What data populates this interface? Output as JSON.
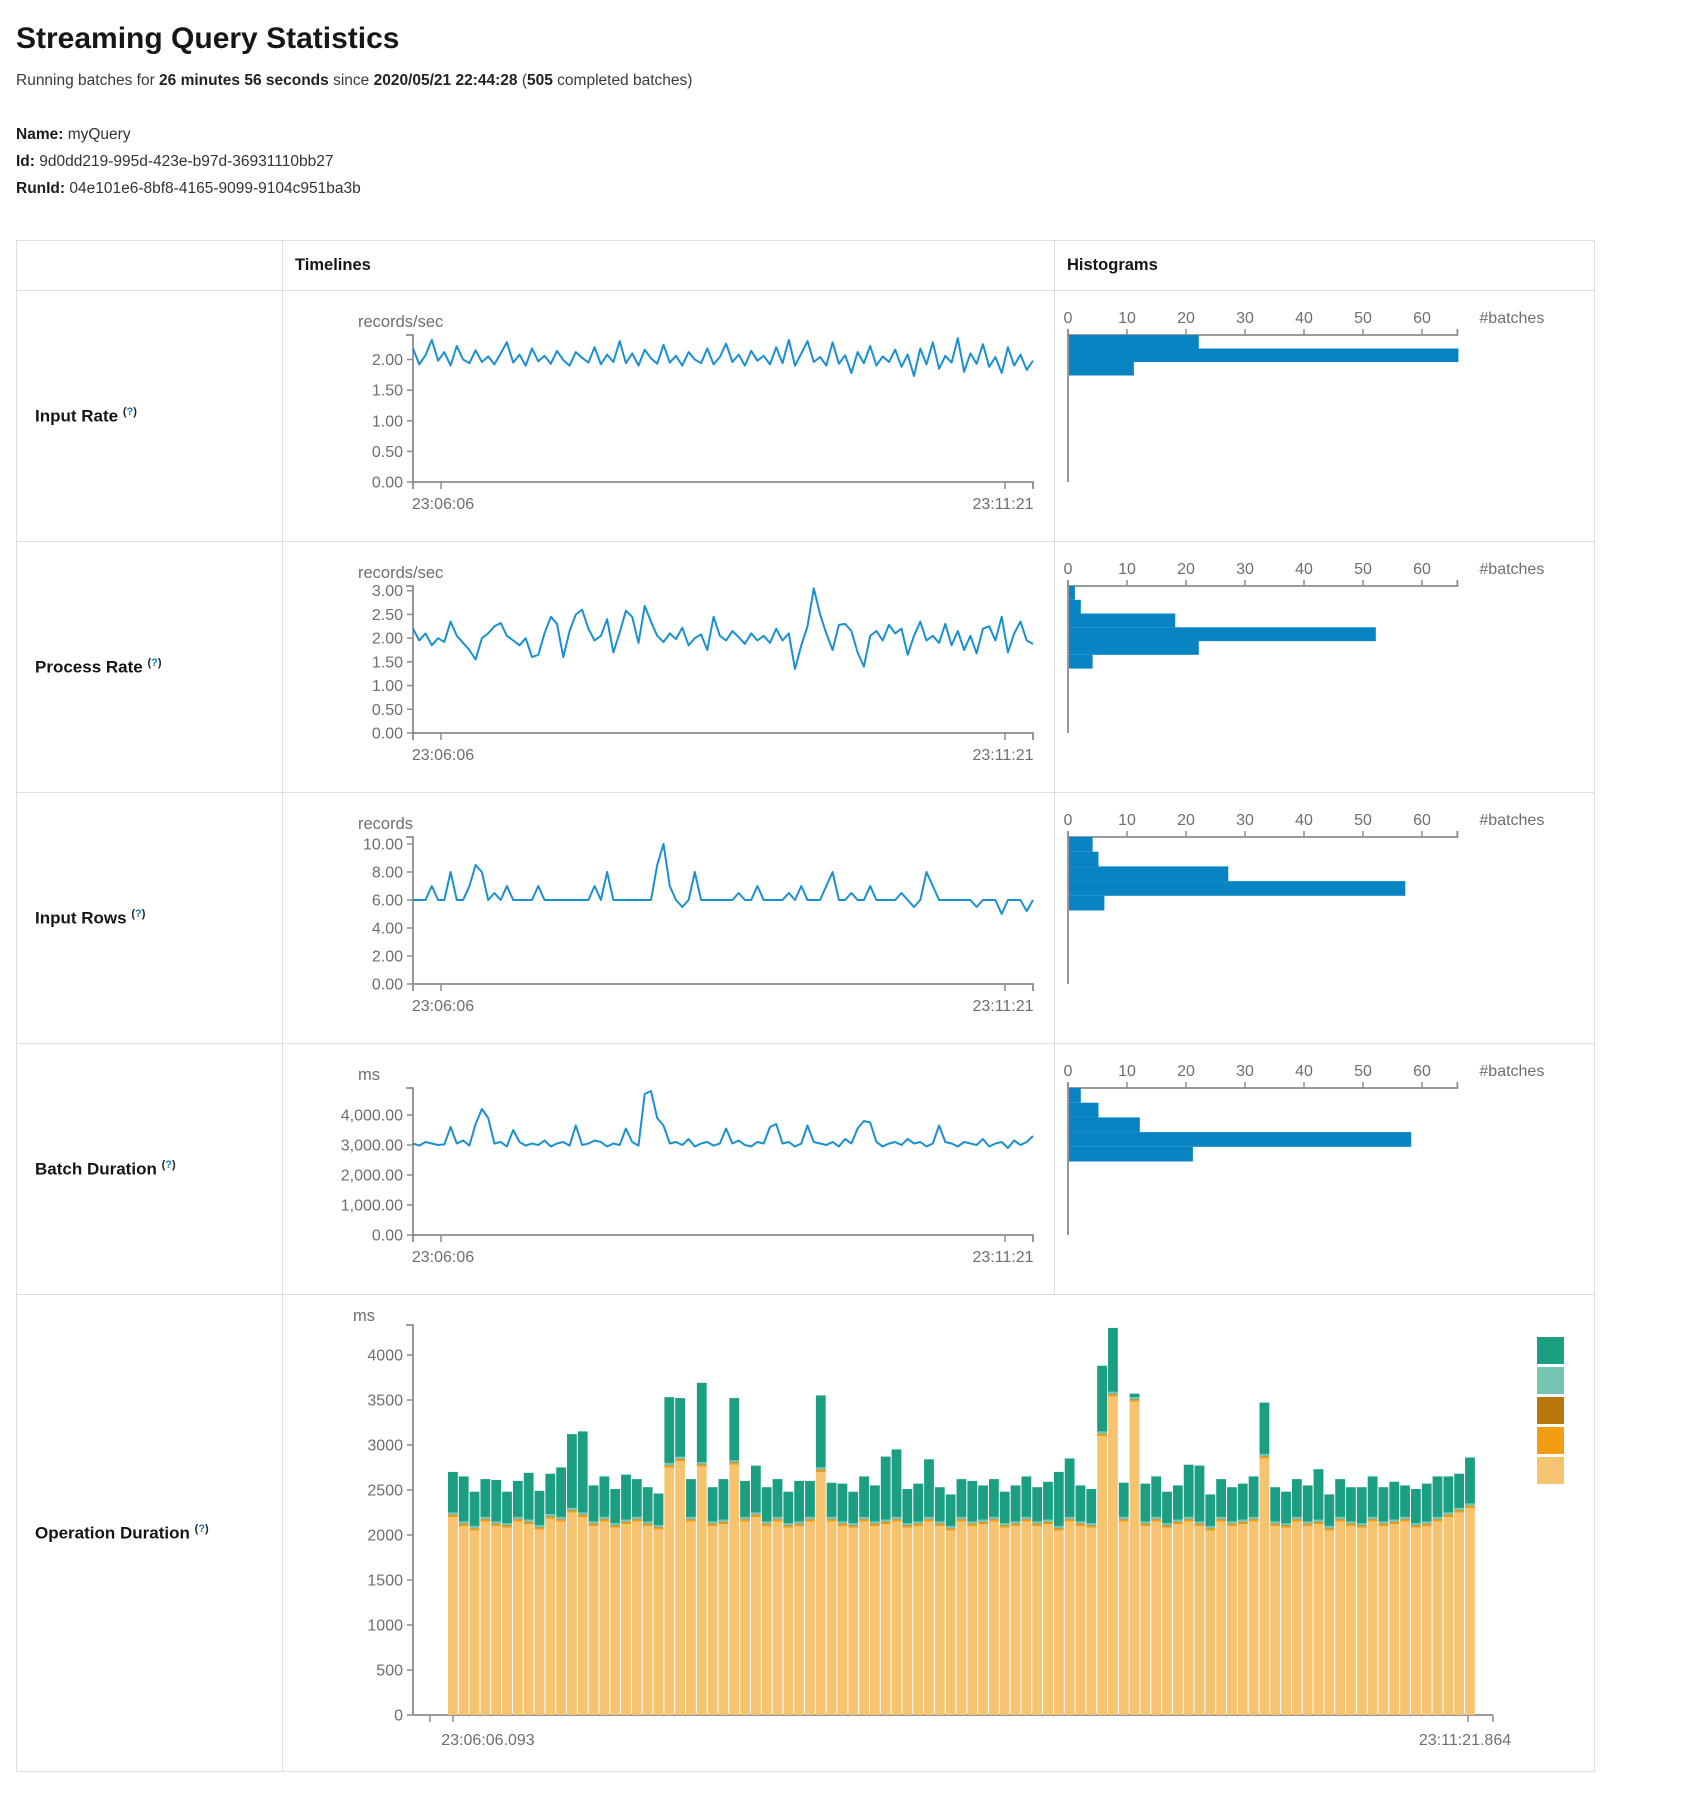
{
  "page": {
    "title": "Streaming Query Statistics",
    "subtitle": {
      "part1": "Running batches for ",
      "duration": "26 minutes 56 seconds",
      "part2": " since ",
      "since": "2020/05/21 22:44:28",
      "part3": " (",
      "batches": "505",
      "part4": " completed batches)"
    },
    "meta": {
      "name_label": "Name:",
      "name_value": "myQuery",
      "id_label": "Id:",
      "id_value": "9d0dd219-995d-423e-b97d-36931110bb27",
      "runid_label": "RunId:",
      "runid_value": "04e101e6-8bf8-4165-9099-9104c951ba3b"
    }
  },
  "table": {
    "headers": {
      "timelines": "Timelines",
      "histograms": "Histograms"
    },
    "help": {
      "open": "(",
      "q": "?",
      "close": ")"
    },
    "rows": {
      "input_rate": {
        "label": "Input Rate"
      },
      "process_rate": {
        "label": "Process Rate"
      },
      "input_rows": {
        "label": "Input Rows"
      },
      "batch_duration": {
        "label": "Batch Duration"
      },
      "operation_duration": {
        "label": "Operation Duration"
      }
    }
  },
  "colors": {
    "line_blue": "#1a90cf",
    "hist_blue": "#0884c2",
    "axis_gray": "#8c8c8c",
    "tick_text": "#6e6e6e"
  },
  "chart_data": [
    {
      "type": "line",
      "title": "Input Rate timeline",
      "unit": "records/sec",
      "ylim": 2.4,
      "yticks": [
        {
          "v": 2.0,
          "label": "2.00"
        },
        {
          "v": 1.5,
          "label": "1.50"
        },
        {
          "v": 1.0,
          "label": "1.00"
        },
        {
          "v": 0.5,
          "label": "0.50"
        },
        {
          "v": 0.0,
          "label": "0.00"
        }
      ],
      "x_labels": [
        "23:06:06",
        "23:11:21"
      ],
      "values": [
        2.18,
        1.92,
        2.07,
        2.32,
        1.98,
        2.12,
        1.9,
        2.22,
        2.0,
        1.94,
        2.15,
        1.96,
        2.05,
        1.92,
        2.1,
        2.28,
        1.95,
        2.08,
        1.9,
        2.18,
        1.97,
        2.06,
        1.93,
        2.14,
        1.99,
        1.9,
        2.12,
        2.03,
        1.95,
        2.2,
        1.92,
        2.08,
        1.96,
        2.3,
        1.94,
        2.1,
        1.9,
        2.16,
        2.02,
        1.93,
        2.24,
        1.95,
        2.06,
        1.9,
        2.12,
        2.0,
        1.94,
        2.18,
        1.92,
        2.04,
        2.26,
        1.96,
        2.08,
        1.9,
        2.14,
        1.98,
        2.06,
        1.92,
        2.2,
        1.94,
        2.32,
        1.9,
        2.1,
        2.3,
        1.96,
        2.04,
        1.9,
        2.28,
        1.93,
        2.07,
        1.78,
        2.12,
        1.94,
        2.22,
        1.9,
        2.05,
        1.96,
        2.16,
        1.88,
        2.08,
        1.73,
        2.18,
        1.92,
        2.28,
        1.85,
        2.06,
        1.95,
        2.35,
        1.8,
        2.1,
        1.93,
        2.25,
        1.88,
        2.04,
        1.78,
        2.2,
        1.9,
        2.08,
        1.83,
        1.98
      ]
    },
    {
      "type": "histogram",
      "title": "Input Rate histogram",
      "end_label": "#batches",
      "xlim": 66,
      "xticks": [
        {
          "v": 0,
          "label": "0"
        },
        {
          "v": 10,
          "label": "10"
        },
        {
          "v": 20,
          "label": "20"
        },
        {
          "v": 30,
          "label": "30"
        },
        {
          "v": 40,
          "label": "40"
        },
        {
          "v": 50,
          "label": "50"
        },
        {
          "v": 60,
          "label": "60"
        }
      ],
      "ylim": 2.4,
      "bins": [
        {
          "from": 2.18,
          "to": 2.4,
          "count": 22
        },
        {
          "from": 1.96,
          "to": 2.18,
          "count": 66
        },
        {
          "from": 1.74,
          "to": 1.96,
          "count": 11
        }
      ]
    },
    {
      "type": "line",
      "title": "Process Rate timeline",
      "unit": "records/sec",
      "ylim": 3.1,
      "yticks": [
        {
          "v": 3.0,
          "label": "3.00"
        },
        {
          "v": 2.5,
          "label": "2.50"
        },
        {
          "v": 2.0,
          "label": "2.00"
        },
        {
          "v": 1.5,
          "label": "1.50"
        },
        {
          "v": 1.0,
          "label": "1.00"
        },
        {
          "v": 0.5,
          "label": "0.50"
        },
        {
          "v": 0.0,
          "label": "0.00"
        }
      ],
      "x_labels": [
        "23:06:06",
        "23:11:21"
      ],
      "values": [
        2.2,
        1.95,
        2.1,
        1.85,
        2.0,
        1.92,
        2.35,
        2.05,
        1.9,
        1.75,
        1.55,
        2.0,
        2.1,
        2.25,
        2.32,
        2.05,
        1.95,
        1.85,
        2.0,
        1.6,
        1.65,
        2.1,
        2.45,
        2.3,
        1.6,
        2.15,
        2.5,
        2.6,
        2.2,
        1.95,
        2.05,
        2.4,
        1.7,
        2.12,
        2.58,
        2.45,
        1.9,
        2.68,
        2.35,
        2.05,
        1.92,
        2.1,
        1.98,
        2.22,
        1.85,
        2.0,
        2.08,
        1.75,
        2.45,
        2.05,
        1.95,
        2.15,
        2.02,
        1.88,
        2.1,
        1.95,
        2.05,
        1.9,
        2.2,
        1.95,
        2.1,
        1.35,
        1.85,
        2.25,
        3.05,
        2.5,
        2.1,
        1.75,
        2.28,
        2.3,
        2.15,
        1.7,
        1.4,
        2.05,
        2.15,
        1.95,
        2.28,
        2.1,
        2.2,
        1.65,
        2.05,
        2.35,
        1.95,
        2.05,
        1.9,
        2.3,
        1.85,
        2.15,
        1.75,
        2.05,
        1.68,
        2.2,
        2.25,
        1.95,
        2.45,
        1.7,
        2.1,
        2.35,
        1.95,
        1.88
      ]
    },
    {
      "type": "histogram",
      "title": "Process Rate histogram",
      "end_label": "#batches",
      "xlim": 66,
      "xticks": [
        {
          "v": 0,
          "label": "0"
        },
        {
          "v": 10,
          "label": "10"
        },
        {
          "v": 20,
          "label": "20"
        },
        {
          "v": 30,
          "label": "30"
        },
        {
          "v": 40,
          "label": "40"
        },
        {
          "v": 50,
          "label": "50"
        },
        {
          "v": 60,
          "label": "60"
        }
      ],
      "ylim": 3.1,
      "bins": [
        {
          "from": 2.81,
          "to": 3.1,
          "count": 1
        },
        {
          "from": 2.52,
          "to": 2.81,
          "count": 2
        },
        {
          "from": 2.23,
          "to": 2.52,
          "count": 18
        },
        {
          "from": 1.94,
          "to": 2.23,
          "count": 52
        },
        {
          "from": 1.65,
          "to": 1.94,
          "count": 22
        },
        {
          "from": 1.36,
          "to": 1.65,
          "count": 4
        }
      ]
    },
    {
      "type": "line",
      "title": "Input Rows timeline",
      "unit": "records",
      "ylim": 10.5,
      "yticks": [
        {
          "v": 10,
          "label": "10.00"
        },
        {
          "v": 8,
          "label": "8.00"
        },
        {
          "v": 6,
          "label": "6.00"
        },
        {
          "v": 4,
          "label": "4.00"
        },
        {
          "v": 2,
          "label": "2.00"
        },
        {
          "v": 0,
          "label": "0.00"
        }
      ],
      "x_labels": [
        "23:06:06",
        "23:11:21"
      ],
      "values": [
        6,
        6,
        6,
        7,
        6,
        6,
        8,
        6,
        6,
        7,
        8.5,
        8,
        6,
        6.5,
        6,
        7,
        6,
        6,
        6,
        6,
        7,
        6,
        6,
        6,
        6,
        6,
        6,
        6,
        6,
        7,
        6,
        8,
        6,
        6,
        6,
        6,
        6,
        6,
        6,
        8.5,
        10,
        7,
        6,
        5.5,
        6,
        8,
        6,
        6,
        6,
        6,
        6,
        6,
        6.5,
        6,
        6,
        7,
        6,
        6,
        6,
        6,
        6.5,
        6,
        7,
        6,
        6,
        6,
        7,
        8,
        6,
        6,
        6.5,
        6,
        6,
        7,
        6,
        6,
        6,
        6,
        6.5,
        6,
        5.5,
        6,
        8,
        7,
        6,
        6,
        6,
        6,
        6,
        6,
        5.5,
        6,
        6,
        6,
        5,
        6,
        6,
        6,
        5.2,
        6
      ]
    },
    {
      "type": "histogram",
      "title": "Input Rows histogram",
      "end_label": "#batches",
      "xlim": 66,
      "xticks": [
        {
          "v": 0,
          "label": "0"
        },
        {
          "v": 10,
          "label": "10"
        },
        {
          "v": 20,
          "label": "20"
        },
        {
          "v": 30,
          "label": "30"
        },
        {
          "v": 40,
          "label": "40"
        },
        {
          "v": 50,
          "label": "50"
        },
        {
          "v": 60,
          "label": "60"
        }
      ],
      "ylim": 10.5,
      "bins": [
        {
          "from": 9.45,
          "to": 10.5,
          "count": 4
        },
        {
          "from": 8.4,
          "to": 9.45,
          "count": 5
        },
        {
          "from": 7.35,
          "to": 8.4,
          "count": 27
        },
        {
          "from": 6.3,
          "to": 7.35,
          "count": 57
        },
        {
          "from": 5.25,
          "to": 6.3,
          "count": 6
        }
      ]
    },
    {
      "type": "line",
      "title": "Batch Duration timeline",
      "unit": "ms",
      "ylim": 4900,
      "yticks": [
        {
          "v": 4000,
          "label": "4,000.00"
        },
        {
          "v": 3000,
          "label": "3,000.00"
        },
        {
          "v": 2000,
          "label": "2,000.00"
        },
        {
          "v": 1000,
          "label": "1,000.00"
        },
        {
          "v": 0,
          "label": "0.00"
        }
      ],
      "x_labels": [
        "23:06:06",
        "23:11:21"
      ],
      "values": [
        3050,
        2980,
        3100,
        3050,
        3000,
        3020,
        3600,
        3050,
        3150,
        2980,
        3700,
        4200,
        3900,
        3050,
        3100,
        2950,
        3500,
        3100,
        2980,
        3050,
        3000,
        3150,
        2950,
        3050,
        3100,
        2980,
        3650,
        3000,
        3050,
        3150,
        3100,
        2950,
        3050,
        3000,
        3550,
        3100,
        2980,
        4700,
        4800,
        3900,
        3650,
        3050,
        3100,
        3000,
        3200,
        2950,
        3050,
        3100,
        2980,
        3050,
        3550,
        3050,
        3150,
        3000,
        2950,
        3100,
        3050,
        3600,
        3700,
        3050,
        3100,
        2950,
        3050,
        3650,
        3100,
        3050,
        3000,
        3100,
        2950,
        3200,
        3050,
        3550,
        3800,
        3750,
        3100,
        2950,
        3050,
        3100,
        3000,
        3200,
        3050,
        3100,
        2950,
        3050,
        3650,
        3100,
        3050,
        2950,
        3100,
        3050,
        3000,
        3200,
        2950,
        3050,
        3100,
        2900,
        3150,
        3000,
        3100,
        3300
      ]
    },
    {
      "type": "histogram",
      "title": "Batch Duration histogram",
      "end_label": "#batches",
      "xlim": 66,
      "xticks": [
        {
          "v": 0,
          "label": "0"
        },
        {
          "v": 10,
          "label": "10"
        },
        {
          "v": 20,
          "label": "20"
        },
        {
          "v": 30,
          "label": "30"
        },
        {
          "v": 40,
          "label": "40"
        },
        {
          "v": 50,
          "label": "50"
        },
        {
          "v": 60,
          "label": "60"
        }
      ],
      "ylim": 4900,
      "bins": [
        {
          "from": 4410,
          "to": 4900,
          "count": 2
        },
        {
          "from": 3920,
          "to": 4410,
          "count": 5
        },
        {
          "from": 3430,
          "to": 3920,
          "count": 12
        },
        {
          "from": 2940,
          "to": 3430,
          "count": 58
        },
        {
          "from": 2450,
          "to": 2940,
          "count": 21
        }
      ]
    },
    {
      "type": "stacked_bar",
      "title": "Operation Duration",
      "unit": "ms",
      "ylim": 4350,
      "yticks": [
        {
          "v": 4000,
          "label": "4000"
        },
        {
          "v": 3500,
          "label": "3500"
        },
        {
          "v": 3000,
          "label": "3000"
        },
        {
          "v": 2500,
          "label": "2500"
        },
        {
          "v": 2000,
          "label": "2000"
        },
        {
          "v": 1500,
          "label": "1500"
        },
        {
          "v": 1000,
          "label": "1000"
        },
        {
          "v": 500,
          "label": "500"
        },
        {
          "v": 0,
          "label": "0"
        }
      ],
      "x_labels": [
        "23:06:06.093",
        "23:11:21.864"
      ],
      "legend_colors": [
        "#1b9e82",
        "#76c5b2",
        "#b8770c",
        "#f29d13",
        "#f6c370"
      ],
      "series": [
        {
          "color": "#f6c370",
          "values": [
            2200,
            2100,
            2050,
            2150,
            2100,
            2080,
            2150,
            2120,
            2060,
            2180,
            2150,
            2250,
            2200,
            2100,
            2150,
            2080,
            2120,
            2150,
            2100,
            2060,
            2750,
            2820,
            2150,
            2760,
            2100,
            2120,
            2780,
            2150,
            2200,
            2100,
            2150,
            2080,
            2100,
            2150,
            2700,
            2150,
            2100,
            2080,
            2150,
            2100,
            2120,
            2150,
            2080,
            2100,
            2150,
            2100,
            2050,
            2150,
            2100,
            2120,
            2150,
            2080,
            2100,
            2150,
            2100,
            2120,
            2050,
            2150,
            2100,
            2080,
            3100,
            3540,
            2150,
            3480,
            2100,
            2150,
            2080,
            2120,
            2150,
            2100,
            2050,
            2150,
            2100,
            2120,
            2150,
            2850,
            2100,
            2080,
            2150,
            2100,
            2120,
            2050,
            2150,
            2100,
            2080,
            2150,
            2100,
            2120,
            2150,
            2080,
            2100,
            2150,
            2200,
            2250,
            2300
          ]
        },
        {
          "color": "#f29d13",
          "const": 18,
          "count": 95
        },
        {
          "color": "#b8770c",
          "const": 8,
          "count": 95
        },
        {
          "color": "#76c5b2",
          "const": 25,
          "count": 95
        },
        {
          "color": "#1b9e82",
          "values": [
            450,
            500,
            380,
            420,
            460,
            350,
            400,
            520,
            380,
            450,
            550,
            820,
            900,
            400,
            450,
            380,
            500,
            420,
            380,
            350,
            730,
            650,
            420,
            880,
            380,
            450,
            690,
            400,
            520,
            380,
            420,
            350,
            450,
            400,
            800,
            380,
            420,
            350,
            450,
            400,
            700,
            750,
            380,
            420,
            640,
            380,
            350,
            420,
            450,
            380,
            420,
            350,
            400,
            450,
            380,
            420,
            600,
            650,
            400,
            380,
            730,
            710,
            380,
            40,
            420,
            450,
            350,
            380,
            580,
            620,
            350,
            420,
            380,
            400,
            450,
            570,
            380,
            350,
            420,
            400,
            560,
            350,
            420,
            380,
            400,
            450,
            380,
            420,
            350,
            380,
            420,
            450,
            400,
            380,
            510
          ]
        }
      ]
    }
  ]
}
